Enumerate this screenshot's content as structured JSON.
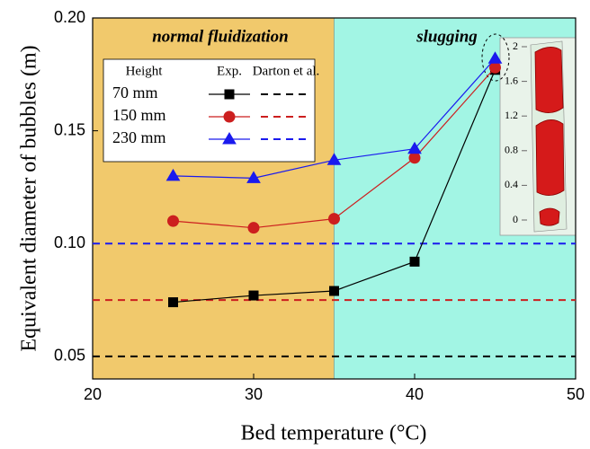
{
  "chart_data": {
    "type": "line",
    "x_label": "Bed temperature (°C)",
    "y_label": "Equivalent diameter of bubbles (m)",
    "xlim": [
      20,
      50
    ],
    "xticks": [
      20,
      30,
      40,
      50
    ],
    "ylim": [
      0.04,
      0.2
    ],
    "yticks": [
      0.05,
      {
        "value": 0.1,
        "label": "0.10"
      },
      0.15,
      {
        "value": 0.2,
        "label": "0.20"
      }
    ],
    "regions": [
      {
        "label": "normal fluidization",
        "xlim": [
          20,
          35
        ],
        "color": "#f1c96c"
      },
      {
        "label": "slugging",
        "xlim": [
          35,
          50
        ],
        "color": "#a2f5e4"
      }
    ],
    "legend_headers": [
      "Height",
      "Exp.",
      "Darton et al."
    ],
    "x": [
      25,
      30,
      35,
      40,
      45
    ],
    "series": [
      {
        "name": "70 mm",
        "color": "#000000",
        "marker": "square",
        "values": [
          0.074,
          0.077,
          0.079,
          0.092,
          0.177
        ],
        "darton": 0.05
      },
      {
        "name": "150 mm",
        "color": "#cc1f1f",
        "marker": "circle",
        "values": [
          0.11,
          0.107,
          0.111,
          0.138,
          0.178
        ],
        "darton": 0.075
      },
      {
        "name": "230 mm",
        "color": "#1a1aee",
        "marker": "triangle",
        "values": [
          0.13,
          0.129,
          0.137,
          0.142,
          0.182
        ],
        "darton": 0.1
      }
    ],
    "inset": {
      "yticks": [
        0,
        0.4,
        0.8,
        1.2,
        1.6,
        2
      ]
    }
  }
}
